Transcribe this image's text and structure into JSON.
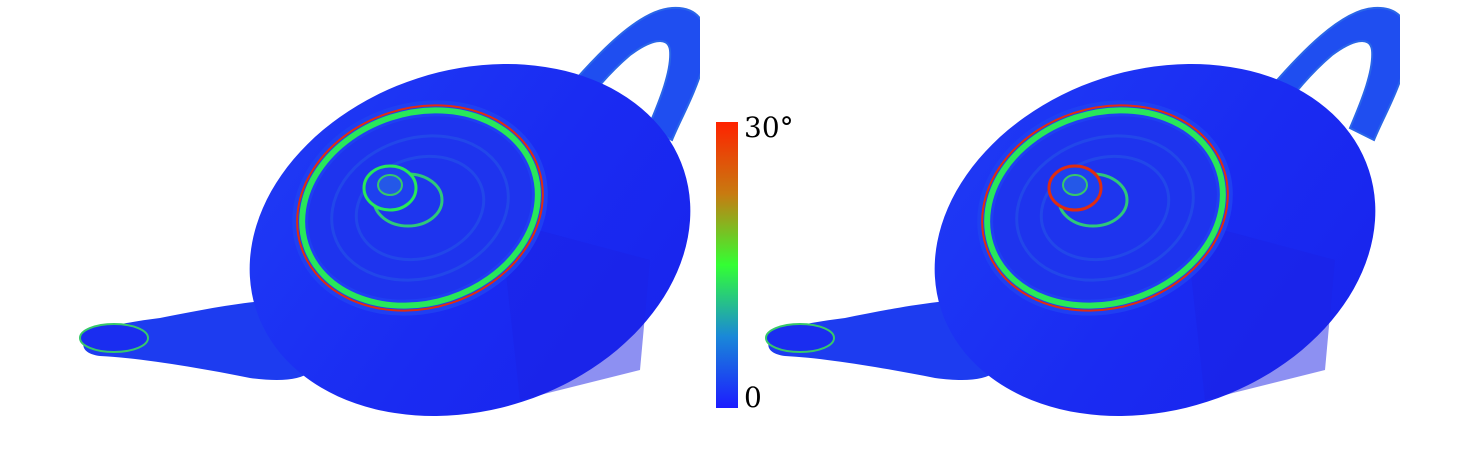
{
  "colorbar": {
    "max_label": "30°",
    "min_label": "0",
    "max_value": 30,
    "min_value": 0,
    "gradient_colors": [
      "#ff2200",
      "#c87a10",
      "#33ff33",
      "#1a88d8",
      "#1c1cff"
    ]
  },
  "colors": {
    "base_blue": "#1a28f2",
    "mid_blue": "#1f52e6",
    "green_band": "#28e85a",
    "red_band": "#e02c10",
    "background": "#ffffff"
  },
  "figures": [
    {
      "name": "teapot-left"
    },
    {
      "name": "teapot-right"
    }
  ]
}
